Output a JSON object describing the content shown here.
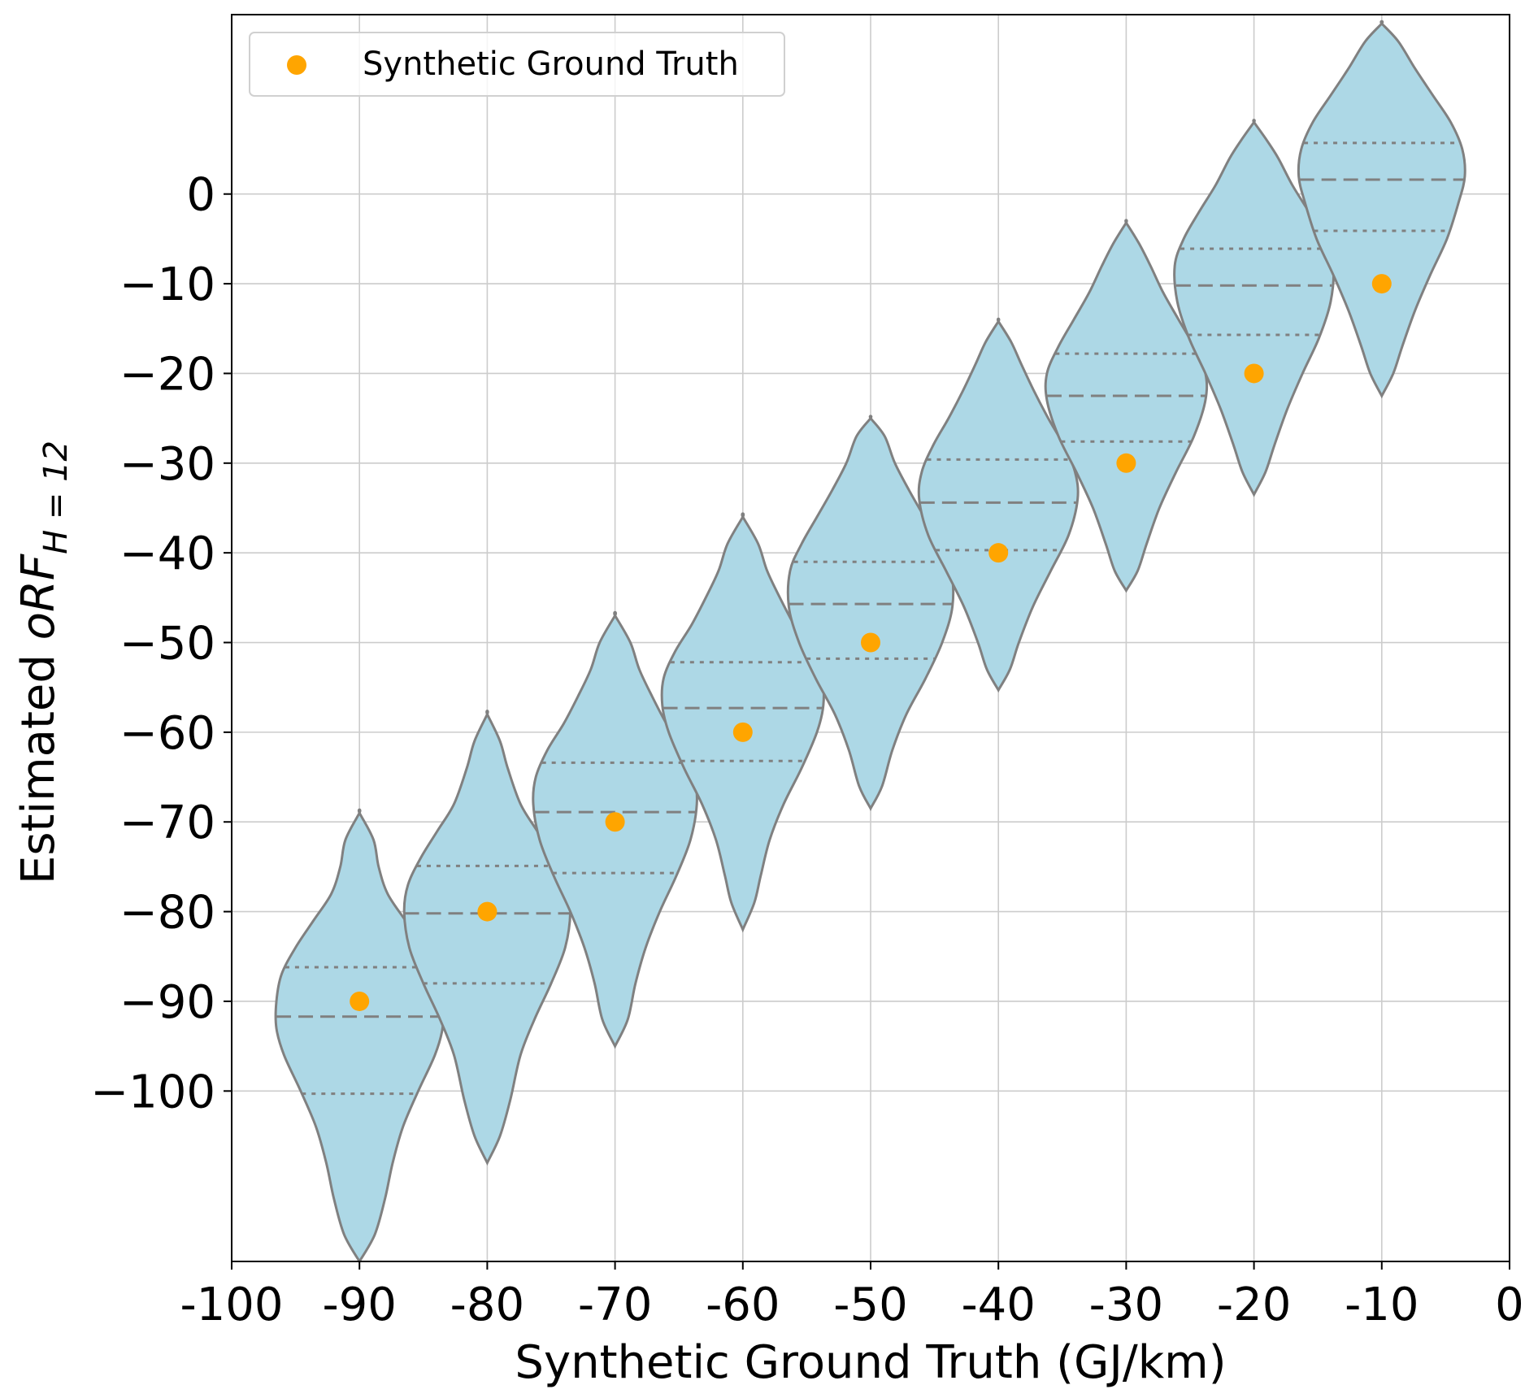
{
  "chart_data": {
    "type": "violin",
    "xlabel": "Synthetic Ground Truth (GJ/km)",
    "ylabel": {
      "prefix": "Estimated ",
      "symbol": "oRF",
      "subscript": "H = 12"
    },
    "xlim": [
      -100,
      0
    ],
    "ylim": [
      -119,
      20
    ],
    "xticks": [
      "-100",
      "-90",
      "-80",
      "-70",
      "-60",
      "-50",
      "-40",
      "-30",
      "-20",
      "-10",
      "0"
    ],
    "yticks": [
      {
        "value": 0,
        "label": "0"
      },
      {
        "value": -10,
        "label": "−10"
      },
      {
        "value": -20,
        "label": "−20"
      },
      {
        "value": -30,
        "label": "−30"
      },
      {
        "value": -40,
        "label": "−40"
      },
      {
        "value": -50,
        "label": "−50"
      },
      {
        "value": -60,
        "label": "−60"
      },
      {
        "value": -70,
        "label": "−70"
      },
      {
        "value": -80,
        "label": "−80"
      },
      {
        "value": -90,
        "label": "−90"
      },
      {
        "value": -100,
        "label": "−100"
      }
    ],
    "grid": true,
    "legend": {
      "position": "top-left",
      "entries": [
        "Synthetic Ground Truth"
      ]
    },
    "colors": {
      "violin_fill": "#add8e6",
      "violin_edge": "#808080",
      "marker": "#ffa500",
      "grid": "#cccccc"
    },
    "series": [
      {
        "name": "Synthetic Ground Truth",
        "kind": "scatter",
        "x": [
          -90,
          -80,
          -70,
          -60,
          -50,
          -40,
          -30,
          -20,
          -10
        ],
        "y": [
          -90,
          -80,
          -70,
          -60,
          -50,
          -40,
          -30,
          -20,
          -10
        ]
      }
    ],
    "violins": [
      {
        "x": -90,
        "min": -119,
        "max": -69,
        "q1": -100.3,
        "median": -91.7,
        "q3": -86.2,
        "profile": [
          [
            -119,
            0
          ],
          [
            -116,
            1.2
          ],
          [
            -112,
            2
          ],
          [
            -108,
            2.6
          ],
          [
            -104,
            3.4
          ],
          [
            -100,
            4.6
          ],
          [
            -96,
            5.9
          ],
          [
            -93,
            6.5
          ],
          [
            -90,
            6.5
          ],
          [
            -87,
            6.1
          ],
          [
            -84,
            5
          ],
          [
            -81,
            3.6
          ],
          [
            -78,
            2.2
          ],
          [
            -75,
            1.5
          ],
          [
            -72,
            1.1
          ],
          [
            -69,
            0
          ]
        ]
      },
      {
        "x": -80,
        "min": -108,
        "max": -58,
        "q1": -88.0,
        "median": -80.2,
        "q3": -74.9,
        "profile": [
          [
            -108,
            0
          ],
          [
            -105,
            1
          ],
          [
            -101,
            1.8
          ],
          [
            -96,
            2.6
          ],
          [
            -92,
            3.7
          ],
          [
            -88,
            5
          ],
          [
            -84,
            6.1
          ],
          [
            -80,
            6.5
          ],
          [
            -77,
            6.2
          ],
          [
            -74,
            5.2
          ],
          [
            -71,
            3.9
          ],
          [
            -68,
            2.6
          ],
          [
            -64,
            1.6
          ],
          [
            -61,
            1
          ],
          [
            -58,
            0
          ]
        ]
      },
      {
        "x": -70,
        "min": -95,
        "max": -47,
        "q1": -75.7,
        "median": -68.9,
        "q3": -63.4,
        "profile": [
          [
            -95,
            0
          ],
          [
            -92,
            1
          ],
          [
            -88,
            1.6
          ],
          [
            -84,
            2.4
          ],
          [
            -80,
            3.5
          ],
          [
            -76,
            4.8
          ],
          [
            -72,
            5.9
          ],
          [
            -68,
            6.4
          ],
          [
            -65,
            6.2
          ],
          [
            -62,
            5.3
          ],
          [
            -59,
            4
          ],
          [
            -56,
            2.9
          ],
          [
            -53,
            1.9
          ],
          [
            -50,
            1.2
          ],
          [
            -47,
            0
          ]
        ]
      },
      {
        "x": -60,
        "min": -82,
        "max": -36,
        "q1": -63.2,
        "median": -57.3,
        "q3": -52.2,
        "profile": [
          [
            -82,
            0
          ],
          [
            -79,
            0.9
          ],
          [
            -76,
            1.4
          ],
          [
            -72,
            2.1
          ],
          [
            -68,
            3.2
          ],
          [
            -64,
            4.6
          ],
          [
            -60,
            5.8
          ],
          [
            -57,
            6.3
          ],
          [
            -54,
            6.2
          ],
          [
            -51,
            5.3
          ],
          [
            -48,
            4
          ],
          [
            -45,
            2.9
          ],
          [
            -42,
            1.9
          ],
          [
            -39,
            1.2
          ],
          [
            -36,
            0
          ]
        ]
      },
      {
        "x": -50,
        "min": -68.5,
        "max": -25,
        "q1": -51.8,
        "median": -45.7,
        "q3": -41.0,
        "profile": [
          [
            -68.5,
            0
          ],
          [
            -66,
            0.9
          ],
          [
            -62,
            1.7
          ],
          [
            -58,
            2.8
          ],
          [
            -54,
            4.3
          ],
          [
            -50,
            5.6
          ],
          [
            -46,
            6.4
          ],
          [
            -42,
            6.3
          ],
          [
            -39,
            5.4
          ],
          [
            -36,
            4.2
          ],
          [
            -33,
            3
          ],
          [
            -30,
            1.9
          ],
          [
            -27,
            1.1
          ],
          [
            -25,
            0
          ]
        ]
      },
      {
        "x": -40,
        "min": -55.3,
        "max": -14.2,
        "q1": -39.7,
        "median": -34.4,
        "q3": -29.6,
        "profile": [
          [
            -55.3,
            0
          ],
          [
            -53,
            0.9
          ],
          [
            -50,
            1.6
          ],
          [
            -46,
            2.7
          ],
          [
            -42,
            4.1
          ],
          [
            -38,
            5.5
          ],
          [
            -34,
            6.2
          ],
          [
            -31,
            6
          ],
          [
            -28,
            5.1
          ],
          [
            -25,
            3.9
          ],
          [
            -22,
            2.8
          ],
          [
            -19,
            1.8
          ],
          [
            -16.5,
            1
          ],
          [
            -14.2,
            0
          ]
        ]
      },
      {
        "x": -30,
        "min": -44.2,
        "max": -3.2,
        "q1": -27.6,
        "median": -22.5,
        "q3": -17.8,
        "profile": [
          [
            -44.2,
            0
          ],
          [
            -42,
            0.9
          ],
          [
            -39,
            1.6
          ],
          [
            -35,
            2.6
          ],
          [
            -31,
            3.9
          ],
          [
            -27,
            5.3
          ],
          [
            -23,
            6.2
          ],
          [
            -20,
            6.2
          ],
          [
            -17,
            5.3
          ],
          [
            -14,
            4.1
          ],
          [
            -11,
            2.9
          ],
          [
            -8,
            1.9
          ],
          [
            -5.5,
            1
          ],
          [
            -3.2,
            0
          ]
        ]
      },
      {
        "x": -20,
        "min": -33.5,
        "max": 8,
        "q1": -15.7,
        "median": -10.2,
        "q3": -6.1,
        "profile": [
          [
            -33.5,
            0
          ],
          [
            -31,
            0.9
          ],
          [
            -28,
            1.6
          ],
          [
            -24,
            2.6
          ],
          [
            -20,
            3.8
          ],
          [
            -16,
            5.1
          ],
          [
            -12,
            6
          ],
          [
            -8,
            6.2
          ],
          [
            -5,
            5.5
          ],
          [
            -2,
            4.3
          ],
          [
            1,
            3
          ],
          [
            4,
            1.9
          ],
          [
            6,
            1
          ],
          [
            8,
            0
          ]
        ]
      },
      {
        "x": -10,
        "min": -22.5,
        "max": 19,
        "q1": -4.1,
        "median": 1.6,
        "q3": 5.7,
        "profile": [
          [
            -22.5,
            0
          ],
          [
            -20,
            0.9
          ],
          [
            -17,
            1.6
          ],
          [
            -13,
            2.6
          ],
          [
            -9,
            3.8
          ],
          [
            -5,
            5.1
          ],
          [
            -1,
            6
          ],
          [
            2,
            6.5
          ],
          [
            5,
            6.3
          ],
          [
            8,
            5.4
          ],
          [
            11,
            4
          ],
          [
            14,
            2.6
          ],
          [
            17,
            1.3
          ],
          [
            19,
            0
          ]
        ]
      }
    ]
  }
}
